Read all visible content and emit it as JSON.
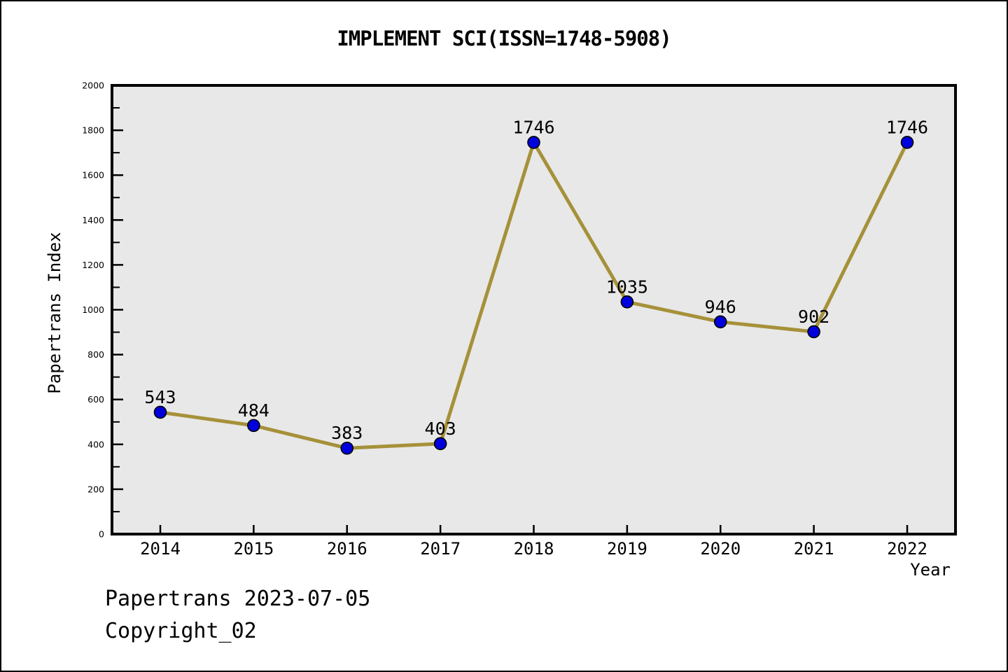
{
  "chart_data": {
    "type": "line",
    "title": "IMPLEMENT SCI(ISSN=1748-5908)",
    "xlabel": "Year",
    "ylabel": "Papertrans Index",
    "categories": [
      "2014",
      "2015",
      "2016",
      "2017",
      "2018",
      "2019",
      "2020",
      "2021",
      "2022"
    ],
    "values": [
      543,
      484,
      383,
      403,
      1746,
      1035,
      946,
      902,
      1746
    ],
    "ylim": [
      0,
      2000
    ],
    "ytick_step": 200,
    "yminor_step": 100,
    "grid": false,
    "legend_position": "none",
    "marker_shape": "circle",
    "line_color": "#a6913a",
    "marker_color": "#0000dd",
    "marker_edge_color": "#000000",
    "plot_bg_color": "#e8e8e8",
    "frame_color": "#000000",
    "data_labels_shown": true
  },
  "footer": {
    "line1": "Papertrans 2023-07-05",
    "line2": "Copyright_02"
  }
}
